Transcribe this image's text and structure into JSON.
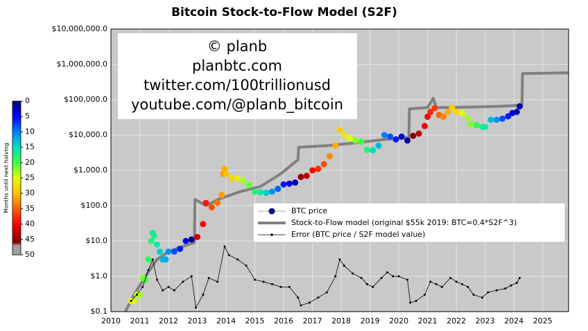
{
  "chart_data": {
    "type": "log-scatter-line",
    "title": "Bitcoin Stock-to-Flow Model (S2F)",
    "ylog": true,
    "grid": true,
    "xlim": [
      2010,
      2025.9
    ],
    "xticks": [
      2010,
      2011,
      2012,
      2013,
      2014,
      2015,
      2016,
      2017,
      2018,
      2019,
      2020,
      2021,
      2022,
      2023,
      2024,
      2025
    ],
    "ylim": [
      0.1,
      10000000
    ],
    "yticks": [
      {
        "value": 0.1,
        "label": "$0.1"
      },
      {
        "value": 1,
        "label": "$1.0"
      },
      {
        "value": 10,
        "label": "$10.0"
      },
      {
        "value": 100,
        "label": "$100.0"
      },
      {
        "value": 1000,
        "label": "$1,000.0"
      },
      {
        "value": 10000,
        "label": "$10,000.0"
      },
      {
        "value": 100000,
        "label": "$100,000.0"
      },
      {
        "value": 1000000,
        "label": "$1,000,000.0"
      },
      {
        "value": 10000000,
        "label": "$10,000,000.0"
      }
    ],
    "annotation": [
      "© planb",
      "planbtc.com",
      "twitter.com/100trillionusd",
      "youtube.com/@planb_bitcoin"
    ],
    "colorbar": {
      "label": "Months until next halving",
      "lim": [
        0,
        50
      ],
      "ticks": [
        0,
        5,
        10,
        15,
        20,
        25,
        30,
        35,
        40,
        45,
        50
      ],
      "colormap": [
        {
          "value": 0,
          "color": "#00007f"
        },
        {
          "value": 5,
          "color": "#0000ff"
        },
        {
          "value": 10,
          "color": "#0080ff"
        },
        {
          "value": 15,
          "color": "#00e0c0"
        },
        {
          "value": 20,
          "color": "#40ff40"
        },
        {
          "value": 25,
          "color": "#e0ff00"
        },
        {
          "value": 30,
          "color": "#ffc000"
        },
        {
          "value": 35,
          "color": "#ff6000"
        },
        {
          "value": 40,
          "color": "#ff0000"
        },
        {
          "value": 46,
          "color": "#800000"
        },
        {
          "value": 47,
          "color": "#a0a0a0"
        },
        {
          "value": 50,
          "color": "#a0a0a0"
        }
      ]
    },
    "series": [
      {
        "name": "Stock-to-Flow model (original $55k 2019:  BTC=0.4*S2F^3)",
        "kind": "line",
        "color": "#808080",
        "x": [
          2010.5,
          2010.8,
          2011.2,
          2011.6,
          2012.0,
          2012.5,
          2012.9,
          2012.92,
          2013.3,
          2013.8,
          2014.5,
          2015.2,
          2015.9,
          2016.5,
          2016.52,
          2017.5,
          2018.5,
          2019.5,
          2020.35,
          2020.37,
          2021.0,
          2021.2,
          2021.3,
          2022.5,
          2023.5,
          2024.28,
          2024.3,
          2025.9
        ],
        "values": [
          0.1,
          0.3,
          1,
          3,
          5,
          7,
          9,
          150,
          100,
          160,
          250,
          350,
          800,
          2000,
          4500,
          5000,
          6000,
          7500,
          8500,
          55000,
          60000,
          110000,
          60000,
          62000,
          65000,
          70000,
          550000,
          580000
        ]
      },
      {
        "name": "BTC price",
        "kind": "scatter",
        "color": "#00008b",
        "x": [
          2010.7,
          2010.8,
          2010.9,
          2011.0,
          2011.1,
          2011.2,
          2011.3,
          2011.4,
          2011.45,
          2011.5,
          2011.6,
          2011.7,
          2011.8,
          2011.9,
          2012.0,
          2012.2,
          2012.4,
          2012.6,
          2012.8,
          2013.0,
          2013.2,
          2013.3,
          2013.5,
          2013.7,
          2013.85,
          2013.9,
          2013.95,
          2014.0,
          2014.2,
          2014.4,
          2014.6,
          2014.8,
          2015.0,
          2015.2,
          2015.4,
          2015.6,
          2015.8,
          2016.0,
          2016.2,
          2016.4,
          2016.6,
          2016.8,
          2017.0,
          2017.2,
          2017.4,
          2017.6,
          2017.8,
          2017.95,
          2018.1,
          2018.3,
          2018.5,
          2018.7,
          2018.9,
          2019.1,
          2019.3,
          2019.5,
          2019.7,
          2019.9,
          2020.1,
          2020.3,
          2020.5,
          2020.7,
          2020.9,
          2021.0,
          2021.1,
          2021.25,
          2021.4,
          2021.55,
          2021.7,
          2021.85,
          2022.0,
          2022.2,
          2022.4,
          2022.5,
          2022.7,
          2022.9,
          2023.0,
          2023.2,
          2023.4,
          2023.6,
          2023.8,
          2023.95,
          2024.1,
          2024.2
        ],
        "values": [
          0.2,
          0.2,
          0.3,
          0.3,
          0.9,
          0.8,
          3,
          10,
          17,
          14,
          8,
          5,
          3,
          3,
          5,
          5,
          6,
          10,
          11,
          13,
          30,
          120,
          90,
          120,
          200,
          800,
          1100,
          800,
          600,
          600,
          500,
          380,
          250,
          240,
          230,
          250,
          300,
          400,
          420,
          450,
          650,
          700,
          1000,
          1100,
          1500,
          2500,
          5000,
          14000,
          10000,
          8000,
          7000,
          6500,
          3800,
          3700,
          5000,
          10000,
          9000,
          7500,
          9000,
          7000,
          9500,
          11000,
          18000,
          33000,
          45000,
          58000,
          37000,
          33000,
          45000,
          60000,
          45000,
          42000,
          30000,
          20000,
          19000,
          17000,
          17000,
          27000,
          27000,
          29000,
          34000,
          42000,
          45000,
          65000
        ],
        "months": [
          26,
          25,
          24,
          23,
          22,
          20,
          19,
          18,
          17,
          17,
          16,
          14,
          13,
          12,
          11,
          8,
          6,
          4,
          1,
          42,
          40,
          39,
          36,
          34,
          32,
          32,
          31,
          30,
          28,
          26,
          23,
          21,
          18,
          16,
          14,
          11,
          9,
          6,
          4,
          2,
          45,
          43,
          40,
          38,
          36,
          33,
          31,
          29,
          27,
          25,
          22,
          20,
          18,
          15,
          13,
          10,
          8,
          6,
          3,
          1,
          46,
          43,
          41,
          40,
          38,
          37,
          35,
          33,
          31,
          29,
          28,
          25,
          23,
          22,
          19,
          17,
          16,
          13,
          11,
          8,
          6,
          4,
          2,
          1
        ]
      },
      {
        "name": "Error (BTC price / S2F model value)",
        "kind": "dotline",
        "color": "#000000",
        "x": [
          2010.7,
          2010.9,
          2011.1,
          2011.3,
          2011.45,
          2011.6,
          2011.8,
          2012.0,
          2012.2,
          2012.5,
          2012.8,
          2012.95,
          2013.2,
          2013.4,
          2013.7,
          2013.95,
          2014.1,
          2014.4,
          2014.7,
          2015.0,
          2015.3,
          2015.6,
          2015.9,
          2016.2,
          2016.5,
          2016.6,
          2016.9,
          2017.2,
          2017.5,
          2017.8,
          2017.95,
          2018.1,
          2018.4,
          2018.7,
          2018.9,
          2019.1,
          2019.4,
          2019.6,
          2019.8,
          2020.0,
          2020.3,
          2020.4,
          2020.6,
          2020.9,
          2021.1,
          2021.3,
          2021.5,
          2021.8,
          2022.0,
          2022.2,
          2022.4,
          2022.6,
          2022.9,
          2023.1,
          2023.4,
          2023.7,
          2023.9,
          2024.1,
          2024.2
        ],
        "values": [
          0.2,
          0.3,
          0.5,
          1.5,
          3,
          0.8,
          0.4,
          0.5,
          0.4,
          0.7,
          1,
          0.13,
          0.3,
          0.9,
          0.7,
          7,
          4,
          3,
          2,
          0.8,
          0.7,
          0.6,
          0.5,
          0.5,
          0.25,
          0.15,
          0.18,
          0.25,
          0.35,
          1,
          3,
          2,
          1.2,
          0.9,
          0.6,
          0.5,
          0.9,
          1.3,
          1,
          1,
          0.8,
          0.18,
          0.2,
          0.3,
          0.7,
          0.6,
          0.5,
          0.9,
          0.7,
          0.6,
          0.5,
          0.3,
          0.25,
          0.35,
          0.4,
          0.45,
          0.55,
          0.65,
          0.9
        ]
      }
    ]
  }
}
